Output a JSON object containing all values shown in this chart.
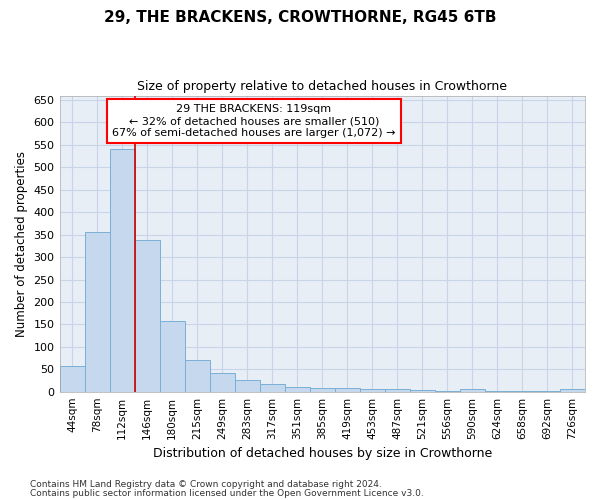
{
  "title": "29, THE BRACKENS, CROWTHORNE, RG45 6TB",
  "subtitle": "Size of property relative to detached houses in Crowthorne",
  "xlabel": "Distribution of detached houses by size in Crowthorne",
  "ylabel": "Number of detached properties",
  "footnote1": "Contains HM Land Registry data © Crown copyright and database right 2024.",
  "footnote2": "Contains public sector information licensed under the Open Government Licence v3.0.",
  "annotation_line1": "29 THE BRACKENS: 119sqm",
  "annotation_line2": "← 32% of detached houses are smaller (510)",
  "annotation_line3": "67% of semi-detached houses are larger (1,072) →",
  "bar_color": "#c5d8ed",
  "bar_edge_color": "#7aafd4",
  "grid_color": "#c8d4e8",
  "bg_color": "#e8eef6",
  "redline_color": "#cc0000",
  "categories": [
    "44sqm",
    "78sqm",
    "112sqm",
    "146sqm",
    "180sqm",
    "215sqm",
    "249sqm",
    "283sqm",
    "317sqm",
    "351sqm",
    "385sqm",
    "419sqm",
    "453sqm",
    "487sqm",
    "521sqm",
    "556sqm",
    "590sqm",
    "624sqm",
    "658sqm",
    "692sqm",
    "726sqm"
  ],
  "values": [
    58,
    355,
    540,
    337,
    157,
    70,
    42,
    25,
    17,
    10,
    8,
    8,
    5,
    5,
    3,
    1,
    5,
    1,
    1,
    1,
    5
  ],
  "redline_x": 2.5,
  "ylim": [
    0,
    660
  ],
  "yticks": [
    0,
    50,
    100,
    150,
    200,
    250,
    300,
    350,
    400,
    450,
    500,
    550,
    600,
    650
  ]
}
